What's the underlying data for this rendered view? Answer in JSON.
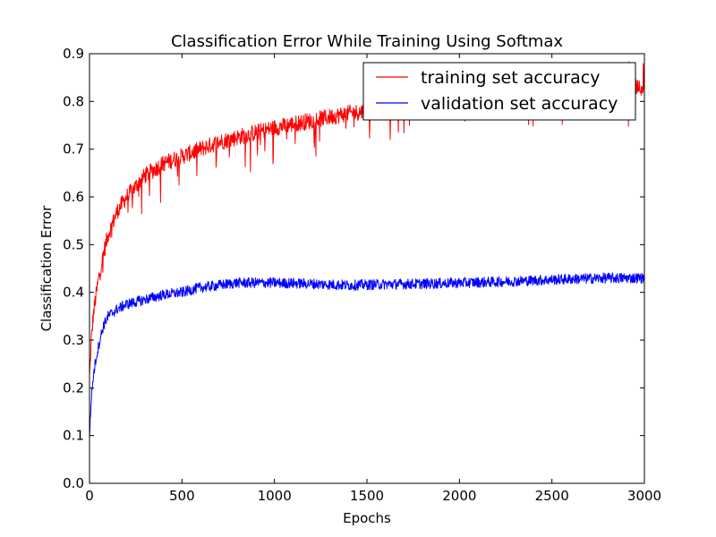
{
  "chart_data": {
    "type": "line",
    "title": "Classification Error While Training Using Softmax",
    "xlabel": "Epochs",
    "ylabel": "Classification Error",
    "xlim": [
      0,
      3000
    ],
    "ylim": [
      0.0,
      0.9
    ],
    "xticks": [
      0,
      500,
      1000,
      1500,
      2000,
      2500,
      3000
    ],
    "yticks": [
      0.0,
      0.1,
      0.2,
      0.3,
      0.4,
      0.5,
      0.6,
      0.7,
      0.8,
      0.9
    ],
    "xtick_labels": [
      "0",
      "500",
      "1000",
      "1500",
      "2000",
      "2500",
      "3000"
    ],
    "ytick_labels": [
      "0.0",
      "0.1",
      "0.2",
      "0.3",
      "0.4",
      "0.5",
      "0.6",
      "0.7",
      "0.8",
      "0.9"
    ],
    "grid": false,
    "legend": {
      "placement": "top-right"
    },
    "series": [
      {
        "name": "training set accuracy",
        "color": "#ff0000",
        "x": [
          0,
          10,
          20,
          30,
          50,
          75,
          100,
          150,
          200,
          300,
          400,
          500,
          600,
          700,
          800,
          900,
          1000,
          1200,
          1400,
          1600,
          1800,
          2000,
          2200,
          2400,
          2600,
          2800,
          3000
        ],
        "values": [
          0.22,
          0.3,
          0.35,
          0.38,
          0.43,
          0.48,
          0.52,
          0.57,
          0.6,
          0.645,
          0.67,
          0.685,
          0.7,
          0.715,
          0.725,
          0.735,
          0.745,
          0.76,
          0.775,
          0.785,
          0.795,
          0.8,
          0.805,
          0.81,
          0.815,
          0.82,
          0.83
        ]
      },
      {
        "name": "validation set accuracy",
        "color": "#0000ff",
        "x": [
          0,
          10,
          20,
          30,
          50,
          75,
          100,
          150,
          200,
          300,
          400,
          500,
          600,
          700,
          800,
          900,
          1000,
          1200,
          1400,
          1600,
          1800,
          2000,
          2200,
          2400,
          2600,
          2800,
          3000
        ],
        "values": [
          0.1,
          0.18,
          0.22,
          0.25,
          0.29,
          0.33,
          0.35,
          0.365,
          0.375,
          0.385,
          0.395,
          0.4,
          0.41,
          0.415,
          0.42,
          0.42,
          0.42,
          0.418,
          0.415,
          0.417,
          0.418,
          0.42,
          0.422,
          0.425,
          0.428,
          0.43,
          0.43
        ]
      }
    ]
  }
}
